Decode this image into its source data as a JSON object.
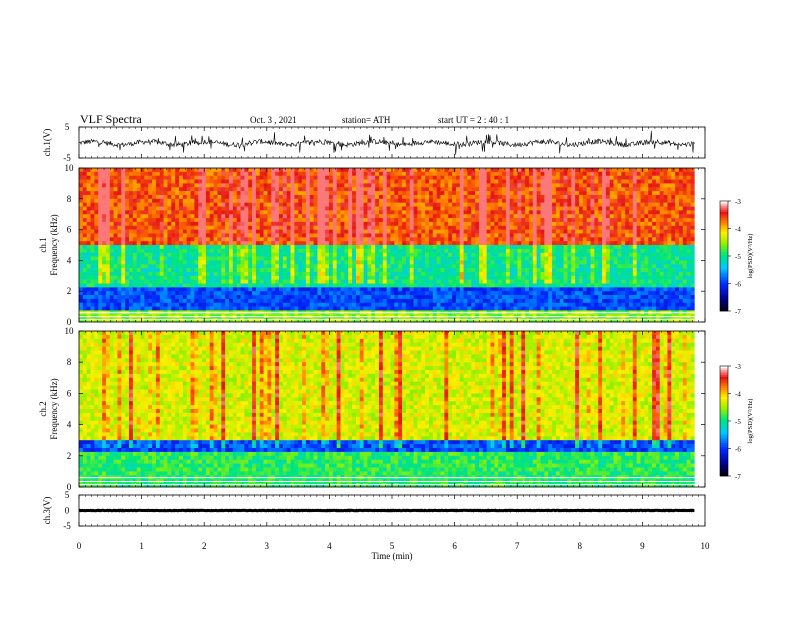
{
  "header": {
    "title": "VLF  Spectra",
    "date": "Oct. 3  , 2021",
    "station": "station= ATH",
    "start_ut": "start  UT  =   2  : 40 : 1"
  },
  "chart_data": [
    {
      "type": "line",
      "panel": "ch1-waveform",
      "ylabel": "ch.1(V)",
      "ylim": [
        -5,
        5
      ],
      "yticks": [
        "5",
        "-5"
      ],
      "xlim": [
        0,
        10
      ],
      "x_extent": [
        0,
        9.83
      ],
      "baseline": -0.2,
      "amplitude": 1.0,
      "color": "#000000"
    },
    {
      "type": "heatmap",
      "panel": "ch1-spectrogram",
      "ylabel_top": "ch.1",
      "ylabel": "Frequency  (kHz)",
      "ylim": [
        0,
        10
      ],
      "yticks": [
        "0",
        "2",
        "4",
        "6",
        "8",
        "10"
      ],
      "xlim": [
        0,
        10
      ],
      "x_extent": [
        0,
        9.83
      ],
      "colorbar": {
        "label": "log(PSD)(V²/Hz)",
        "range": [
          -7,
          -3
        ],
        "ticks": [
          "-3",
          "-4",
          "-5",
          "-6",
          "-7"
        ]
      },
      "bands_kHz": [
        {
          "from": 5.0,
          "to": 10.0,
          "dominant": "red/yellow"
        },
        {
          "from": 2.2,
          "to": 5.0,
          "dominant": "green/cyan"
        },
        {
          "from": 0.8,
          "to": 2.2,
          "dominant": "blue"
        },
        {
          "from": 0.0,
          "to": 0.8,
          "dominant": "green/yellow"
        }
      ]
    },
    {
      "type": "heatmap",
      "panel": "ch2-spectrogram",
      "ylabel_top": "ch.2",
      "ylabel": "Frequency  (kHz)",
      "ylim": [
        0,
        10
      ],
      "yticks": [
        "0",
        "2",
        "4",
        "6",
        "8",
        "10"
      ],
      "xlim": [
        0,
        10
      ],
      "x_extent": [
        0,
        9.83
      ],
      "colorbar": {
        "label": "log(PSD)(V²/Hz)",
        "range": [
          -7,
          -3
        ],
        "ticks": [
          "-3",
          "-4",
          "-5",
          "-6",
          "-7"
        ]
      },
      "bands_kHz": [
        {
          "from": 3.0,
          "to": 10.0,
          "dominant": "yellow/green with red streaks"
        },
        {
          "from": 2.3,
          "to": 3.0,
          "dominant": "blue"
        },
        {
          "from": 0.0,
          "to": 2.3,
          "dominant": "green"
        }
      ]
    },
    {
      "type": "line",
      "panel": "ch3-waveform",
      "ylabel": "ch.3(V)",
      "ylim": [
        -5,
        5
      ],
      "yticks": [
        "5",
        "0",
        "-5"
      ],
      "xlabel": "Time  (min)",
      "xticks": [
        "0",
        "1",
        "2",
        "3",
        "4",
        "5",
        "6",
        "7",
        "8",
        "9",
        "10"
      ],
      "xlim": [
        0,
        10
      ],
      "x_extent": [
        0,
        9.83
      ],
      "baseline": 0.0,
      "amplitude": 0.15,
      "color": "#000000"
    }
  ]
}
